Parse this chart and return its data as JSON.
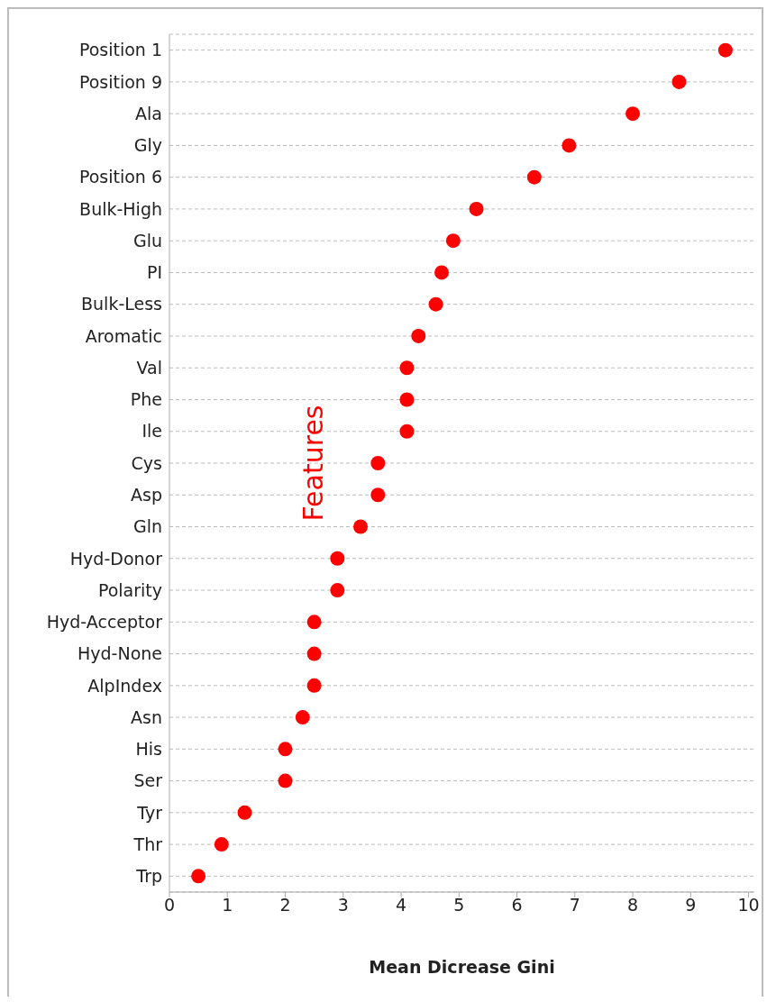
{
  "chart_data": {
    "type": "scatter",
    "orientation": "horizontal",
    "xlabel": "Mean Dicrease Gini",
    "ylabel": "Features",
    "categories": [
      "Position 1",
      "Position 9",
      "Ala",
      "Gly",
      "Position 6",
      "Bulk-High",
      "Glu",
      "PI",
      "Bulk-Less",
      "Aromatic",
      "Val",
      "Phe",
      "Ile",
      "Cys",
      "Asp",
      "Gln",
      "Hyd-Donor",
      "Polarity",
      "Hyd-Acceptor",
      "Hyd-None",
      "AlpIndex",
      "Asn",
      "His",
      "Ser",
      "Tyr",
      "Thr",
      "Trp"
    ],
    "values": [
      9.6,
      8.8,
      8.0,
      6.9,
      6.3,
      5.3,
      4.9,
      4.7,
      4.6,
      4.3,
      4.1,
      4.1,
      4.1,
      3.6,
      3.6,
      3.3,
      2.9,
      2.9,
      2.5,
      2.5,
      2.5,
      2.3,
      2.0,
      2.0,
      1.3,
      0.9,
      0.5
    ],
    "color": "#ff0000",
    "marker": "circle",
    "xlim": [
      0,
      10.1
    ],
    "xticks": [
      0,
      1,
      2,
      3,
      4,
      5,
      6,
      7,
      8,
      9,
      10
    ],
    "grid": "y"
  }
}
